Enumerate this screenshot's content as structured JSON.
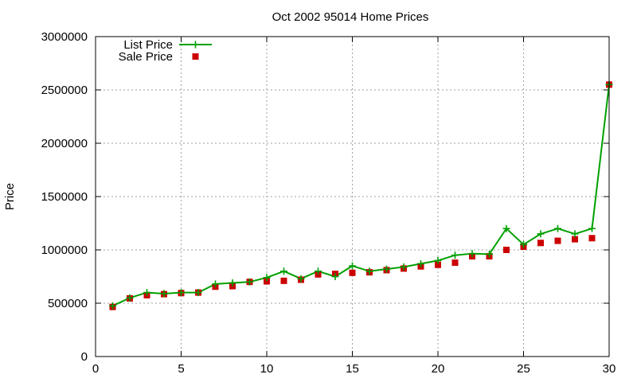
{
  "chart_data": {
    "type": "line",
    "title": "Oct 2002 95014 Home Prices",
    "xlabel": "",
    "ylabel": "Price",
    "xlim": [
      0,
      30
    ],
    "ylim": [
      0,
      3000000
    ],
    "x_ticks": [
      0,
      5,
      10,
      15,
      20,
      25,
      30
    ],
    "y_ticks": [
      0,
      500000,
      1000000,
      1500000,
      2000000,
      2500000,
      3000000
    ],
    "grid": true,
    "legend_position": "top-left",
    "series": [
      {
        "name": "List Price",
        "style": "line-with-plus-markers",
        "color": "#00a000",
        "x": [
          1,
          2,
          3,
          4,
          5,
          6,
          7,
          8,
          9,
          10,
          11,
          12,
          13,
          14,
          15,
          16,
          17,
          18,
          19,
          20,
          21,
          22,
          23,
          24,
          25,
          26,
          27,
          28,
          29,
          30
        ],
        "values": [
          475000,
          550000,
          600000,
          590000,
          600000,
          600000,
          680000,
          690000,
          700000,
          740000,
          800000,
          730000,
          800000,
          750000,
          850000,
          800000,
          820000,
          840000,
          870000,
          900000,
          950000,
          965000,
          960000,
          1200000,
          1050000,
          1150000,
          1200000,
          1150000,
          1200000,
          2550000
        ]
      },
      {
        "name": "Sale Price",
        "style": "square-markers",
        "color": "#cc0000",
        "x": [
          1,
          2,
          3,
          4,
          5,
          6,
          7,
          8,
          9,
          10,
          11,
          12,
          13,
          14,
          15,
          16,
          17,
          18,
          19,
          20,
          21,
          22,
          23,
          24,
          25,
          26,
          27,
          28,
          29,
          30
        ],
        "values": [
          465000,
          545000,
          575000,
          585000,
          595000,
          600000,
          655000,
          660000,
          700000,
          705000,
          710000,
          720000,
          770000,
          775000,
          785000,
          790000,
          810000,
          825000,
          845000,
          860000,
          880000,
          940000,
          940000,
          1000000,
          1030000,
          1065000,
          1085000,
          1100000,
          1110000,
          2550000
        ]
      }
    ]
  }
}
